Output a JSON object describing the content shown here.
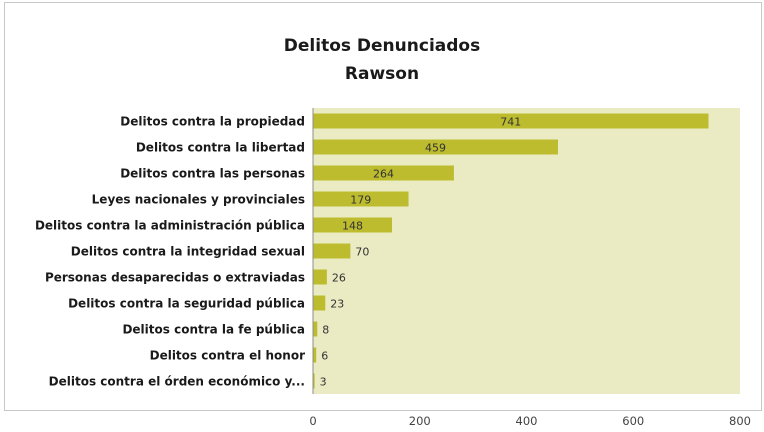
{
  "chart_data": {
    "type": "bar",
    "orientation": "horizontal",
    "title": "Delitos Denunciados",
    "subtitle": "Rawson",
    "categories": [
      "Delitos contra la propiedad",
      "Delitos contra la libertad",
      "Delitos contra las personas",
      "Leyes nacionales y provinciales",
      "Delitos contra la administración pública",
      "Delitos contra la integridad sexual",
      "Personas desaparecidas o extraviadas",
      "Delitos contra la seguridad pública",
      "Delitos contra la fe pública",
      "Delitos contra el honor",
      "Delitos contra el órden económico y..."
    ],
    "values": [
      741,
      459,
      264,
      179,
      148,
      70,
      26,
      23,
      8,
      6,
      3
    ],
    "xlim": [
      0,
      800
    ],
    "xticks": [
      0,
      200,
      400,
      600,
      800
    ],
    "grid": false,
    "legend": "none",
    "colors": {
      "bar": "#bcbc2e",
      "plot_area": "#ebebc3",
      "axis": "#8c8c8c",
      "label_text": "#1a1a1a",
      "value_text": "#333333"
    }
  }
}
